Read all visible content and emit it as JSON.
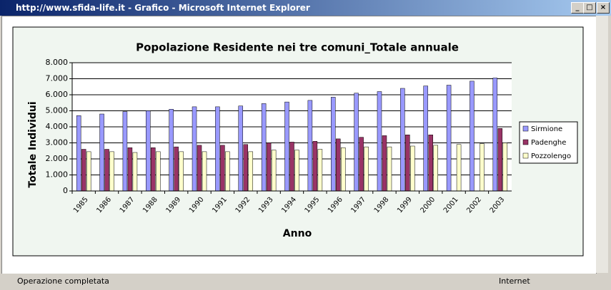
{
  "window": {
    "title": "http://www.sfida-life.it - Grafico - Microsoft Internet Explorer",
    "status": "Operazione completata",
    "zone": "Internet"
  },
  "chart_data": {
    "type": "bar",
    "title": "Popolazione Residente nei tre comuni_Totale annuale",
    "x_label": "Anno",
    "y_label": "Totale Individui",
    "categories": [
      "1985",
      "1986",
      "1987",
      "1988",
      "1989",
      "1990",
      "1991",
      "1992",
      "1993",
      "1994",
      "1995",
      "1996",
      "1997",
      "1998",
      "1999",
      "2000",
      "2001",
      "2002",
      "2003"
    ],
    "series": [
      {
        "name": "Sirmione",
        "color": "#9999ff",
        "values": [
          4700,
          4800,
          4950,
          5000,
          5100,
          5250,
          5250,
          5300,
          5450,
          5550,
          5650,
          5850,
          6100,
          6200,
          6400,
          6550,
          6600,
          6850,
          7050
        ]
      },
      {
        "name": "Padenghe",
        "color": "#993366",
        "values": [
          2600,
          2600,
          2700,
          2700,
          2750,
          2850,
          2850,
          2900,
          3000,
          3050,
          3100,
          3250,
          3350,
          3450,
          3500,
          3500,
          null,
          null,
          3900
        ]
      },
      {
        "name": "Pozzolengo",
        "color": "#ffffcc",
        "values": [
          2450,
          2450,
          2400,
          2450,
          2450,
          2450,
          2450,
          2450,
          2550,
          2550,
          2600,
          2700,
          2750,
          2750,
          2800,
          2850,
          2900,
          2950,
          3000
        ]
      }
    ],
    "ylim": [
      0,
      8000
    ],
    "yticks": [
      0,
      {
        "value": 1000,
        "label": "1.000"
      },
      {
        "value": 2000,
        "label": "2.000"
      },
      {
        "value": 3000,
        "label": "3.000"
      },
      {
        "value": 4000,
        "label": "4.000"
      },
      {
        "value": 5000,
        "label": "5.000"
      },
      {
        "value": 6000,
        "label": "6.000"
      },
      {
        "value": 7000,
        "label": "7.000"
      },
      {
        "value": 8000,
        "label": "8.000"
      }
    ],
    "grid": true,
    "legend": "right"
  }
}
